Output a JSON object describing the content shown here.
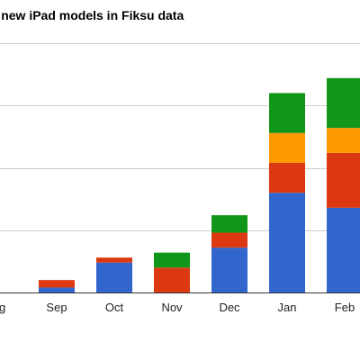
{
  "chart_data": {
    "type": "bar",
    "stacked": true,
    "title": "…nt of new iPad models in Fiksu data",
    "categories": [
      "Aug",
      "Sep",
      "Oct",
      "Nov",
      "Dec",
      "Jan",
      "Feb"
    ],
    "tick_labels": [
      "ug",
      "Sep",
      "Oct",
      "Nov",
      "Dec",
      "Jan",
      "Feb"
    ],
    "ylim": [
      0,
      100
    ],
    "yticks": [
      0,
      25,
      50,
      75,
      100
    ],
    "grid": true,
    "series": [
      {
        "color": "#3366cc",
        "values": [
          0,
          2,
          12,
          0,
          18,
          40,
          34
        ]
      },
      {
        "color": "#dc3912",
        "values": [
          0,
          3,
          2,
          10,
          6,
          12,
          22
        ]
      },
      {
        "color": "#ff9900",
        "values": [
          0,
          0,
          0,
          0,
          0,
          12,
          10
        ]
      },
      {
        "color": "#109618",
        "values": [
          0,
          0,
          0,
          6,
          7,
          16,
          20
        ]
      }
    ]
  }
}
